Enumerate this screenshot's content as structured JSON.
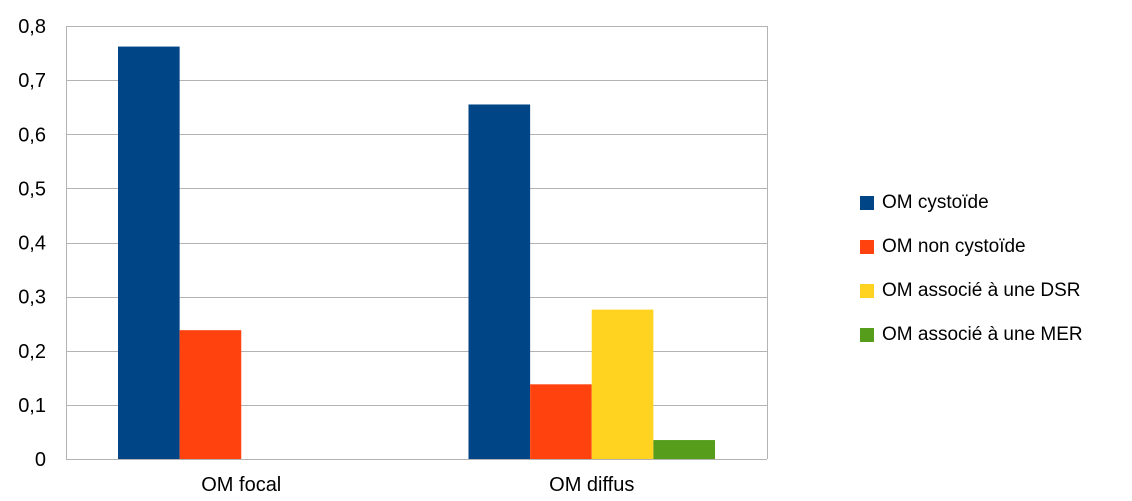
{
  "chart_data": {
    "type": "bar",
    "categories": [
      "OM focal",
      "OM diffus"
    ],
    "series": [
      {
        "name": "OM cystoïde",
        "color": "#004586",
        "values": [
          0.762,
          0.655
        ]
      },
      {
        "name": "OM non cystoïde",
        "color": "#ff420e",
        "values": [
          0.238,
          0.138
        ]
      },
      {
        "name": "OM associé à une DSR",
        "color": "#ffd320",
        "values": [
          0,
          0.276
        ]
      },
      {
        "name": "OM associé à une MER",
        "color": "#579d1c",
        "values": [
          0,
          0.035
        ]
      }
    ],
    "yticks": [
      "0",
      "0,1",
      "0,2",
      "0,3",
      "0,4",
      "0,5",
      "0,6",
      "0,7",
      "0,8"
    ],
    "ylim": [
      0,
      0.8
    ],
    "grid": true,
    "legend_position": "right"
  }
}
